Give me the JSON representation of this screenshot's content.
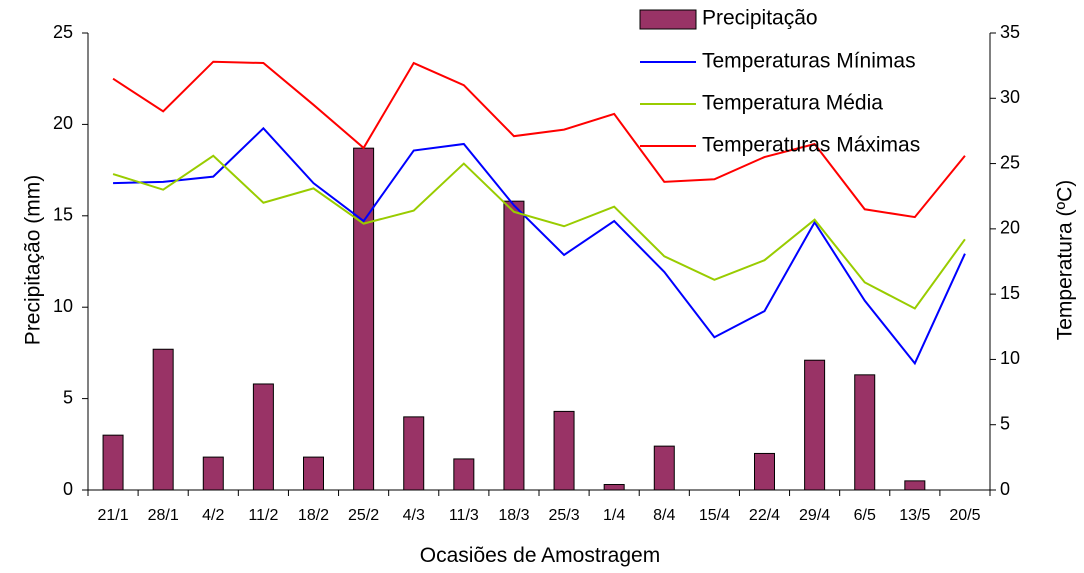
{
  "chart_data": {
    "type": "bar+line",
    "categories": [
      "21/1",
      "28/1",
      "4/2",
      "11/2",
      "18/2",
      "25/2",
      "4/3",
      "11/3",
      "18/3",
      "25/3",
      "1/4",
      "8/4",
      "15/4",
      "22/4",
      "29/4",
      "6/5",
      "13/5",
      "20/5"
    ],
    "bar_series": {
      "name": "Precipitação",
      "axis": "left",
      "color": "#993366",
      "values": [
        3.0,
        7.7,
        1.8,
        5.8,
        1.8,
        18.7,
        4.0,
        1.7,
        15.8,
        4.3,
        0.3,
        2.4,
        0,
        2.0,
        7.1,
        6.3,
        0.5,
        null
      ]
    },
    "line_series": [
      {
        "name": "Temperaturas Mínimas",
        "axis": "right",
        "color": "#0000ff",
        "values": [
          23.5,
          23.6,
          24.0,
          27.7,
          23.5,
          20.6,
          26.0,
          26.5,
          21.8,
          18.0,
          20.6,
          16.7,
          11.7,
          13.7,
          20.5,
          14.5,
          9.7,
          18.1
        ]
      },
      {
        "name": "Temperatura Média",
        "axis": "right",
        "color": "#99cc00",
        "values": [
          24.2,
          23.0,
          25.6,
          22.0,
          23.1,
          20.4,
          21.4,
          25.0,
          21.3,
          20.2,
          21.7,
          17.9,
          16.1,
          17.6,
          20.7,
          15.9,
          13.9,
          19.2
        ]
      },
      {
        "name": "Temperaturas Máximas",
        "axis": "right",
        "color": "#ff0000",
        "values": [
          31.5,
          29.0,
          32.8,
          32.7,
          29.5,
          26.2,
          32.7,
          31.0,
          27.1,
          27.6,
          28.8,
          23.6,
          23.8,
          25.5,
          26.5,
          21.5,
          20.9,
          25.6
        ]
      }
    ],
    "yleft": {
      "label": "Precipitação (mm)",
      "min": 0,
      "max": 25,
      "ticks": [
        0,
        5,
        10,
        15,
        20,
        25
      ]
    },
    "yright": {
      "label": "Temperatura (ºC)",
      "min": 0,
      "max": 35,
      "ticks": [
        0,
        5,
        10,
        15,
        20,
        25,
        30,
        35
      ]
    },
    "xlabel": "Ocasiões de Amostragem",
    "grid": false,
    "legend": "top-right"
  }
}
